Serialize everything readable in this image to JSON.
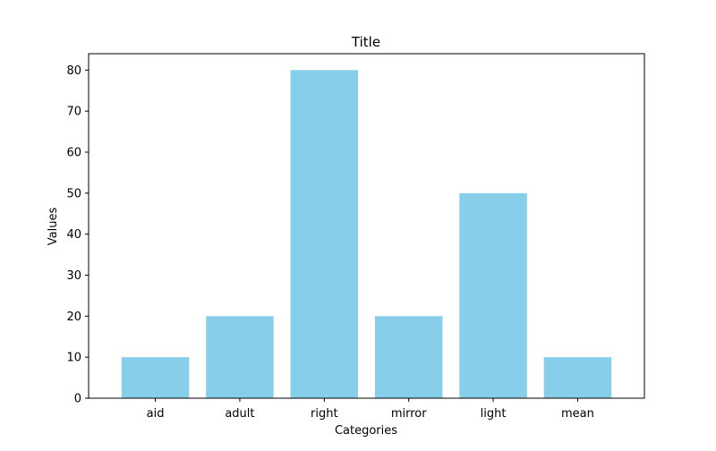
{
  "chart_data": {
    "type": "bar",
    "title": "Title",
    "xlabel": "Categories",
    "ylabel": "Values",
    "categories": [
      "aid",
      "adult",
      "right",
      "mirror",
      "light",
      "mean"
    ],
    "values": [
      10,
      20,
      80,
      20,
      50,
      10
    ],
    "ylim": [
      0,
      84
    ],
    "yticks": [
      0,
      10,
      20,
      30,
      40,
      50,
      60,
      70,
      80
    ],
    "grid": false,
    "legend": "none",
    "bar_color": "#87ceeb"
  }
}
